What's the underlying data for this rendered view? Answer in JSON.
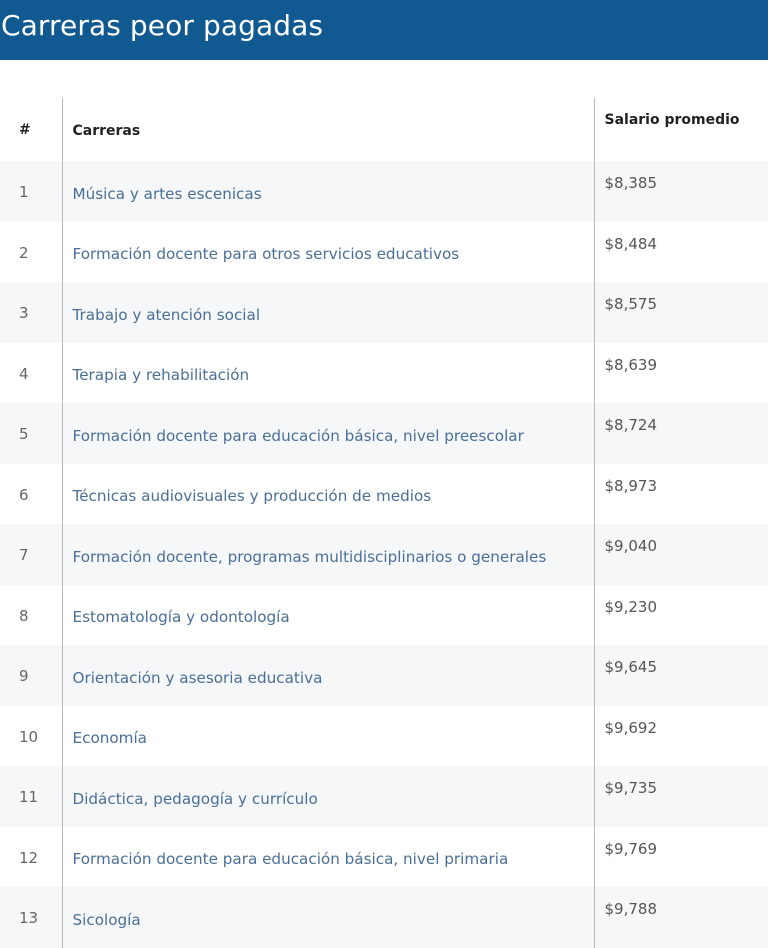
{
  "header": {
    "title": "Carreras peor pagadas"
  },
  "table": {
    "headers": {
      "num": "#",
      "career": "Carreras",
      "salary": "Salario promedio"
    },
    "rows": [
      {
        "num": "1",
        "career": "Música y artes escenicas",
        "salary": "$8,385"
      },
      {
        "num": "2",
        "career": "Formación docente para otros servicios educativos",
        "salary": "$8,484"
      },
      {
        "num": "3",
        "career": "Trabajo y atención social",
        "salary": "$8,575"
      },
      {
        "num": "4",
        "career": "Terapia y rehabilitación",
        "salary": "$8,639"
      },
      {
        "num": "5",
        "career": "Formación docente para educación básica, nivel preescolar",
        "salary": "$8,724"
      },
      {
        "num": "6",
        "career": "Técnicas audiovisuales y producción de medios",
        "salary": "$8,973"
      },
      {
        "num": "7",
        "career": "Formación docente, programas multidisciplinarios o generales",
        "salary": "$9,040"
      },
      {
        "num": "8",
        "career": "Estomatología y odontología",
        "salary": "$9,230"
      },
      {
        "num": "9",
        "career": "Orientación y asesoria educativa",
        "salary": "$9,645"
      },
      {
        "num": "10",
        "career": "Economía",
        "salary": "$9,692"
      },
      {
        "num": "11",
        "career": "Didáctica, pedagogía y currículo",
        "salary": "$9,735"
      },
      {
        "num": "12",
        "career": "Formación docente para educación básica, nivel primaria",
        "salary": "$9,769"
      },
      {
        "num": "13",
        "career": "Sicología",
        "salary": "$9,788"
      }
    ]
  }
}
